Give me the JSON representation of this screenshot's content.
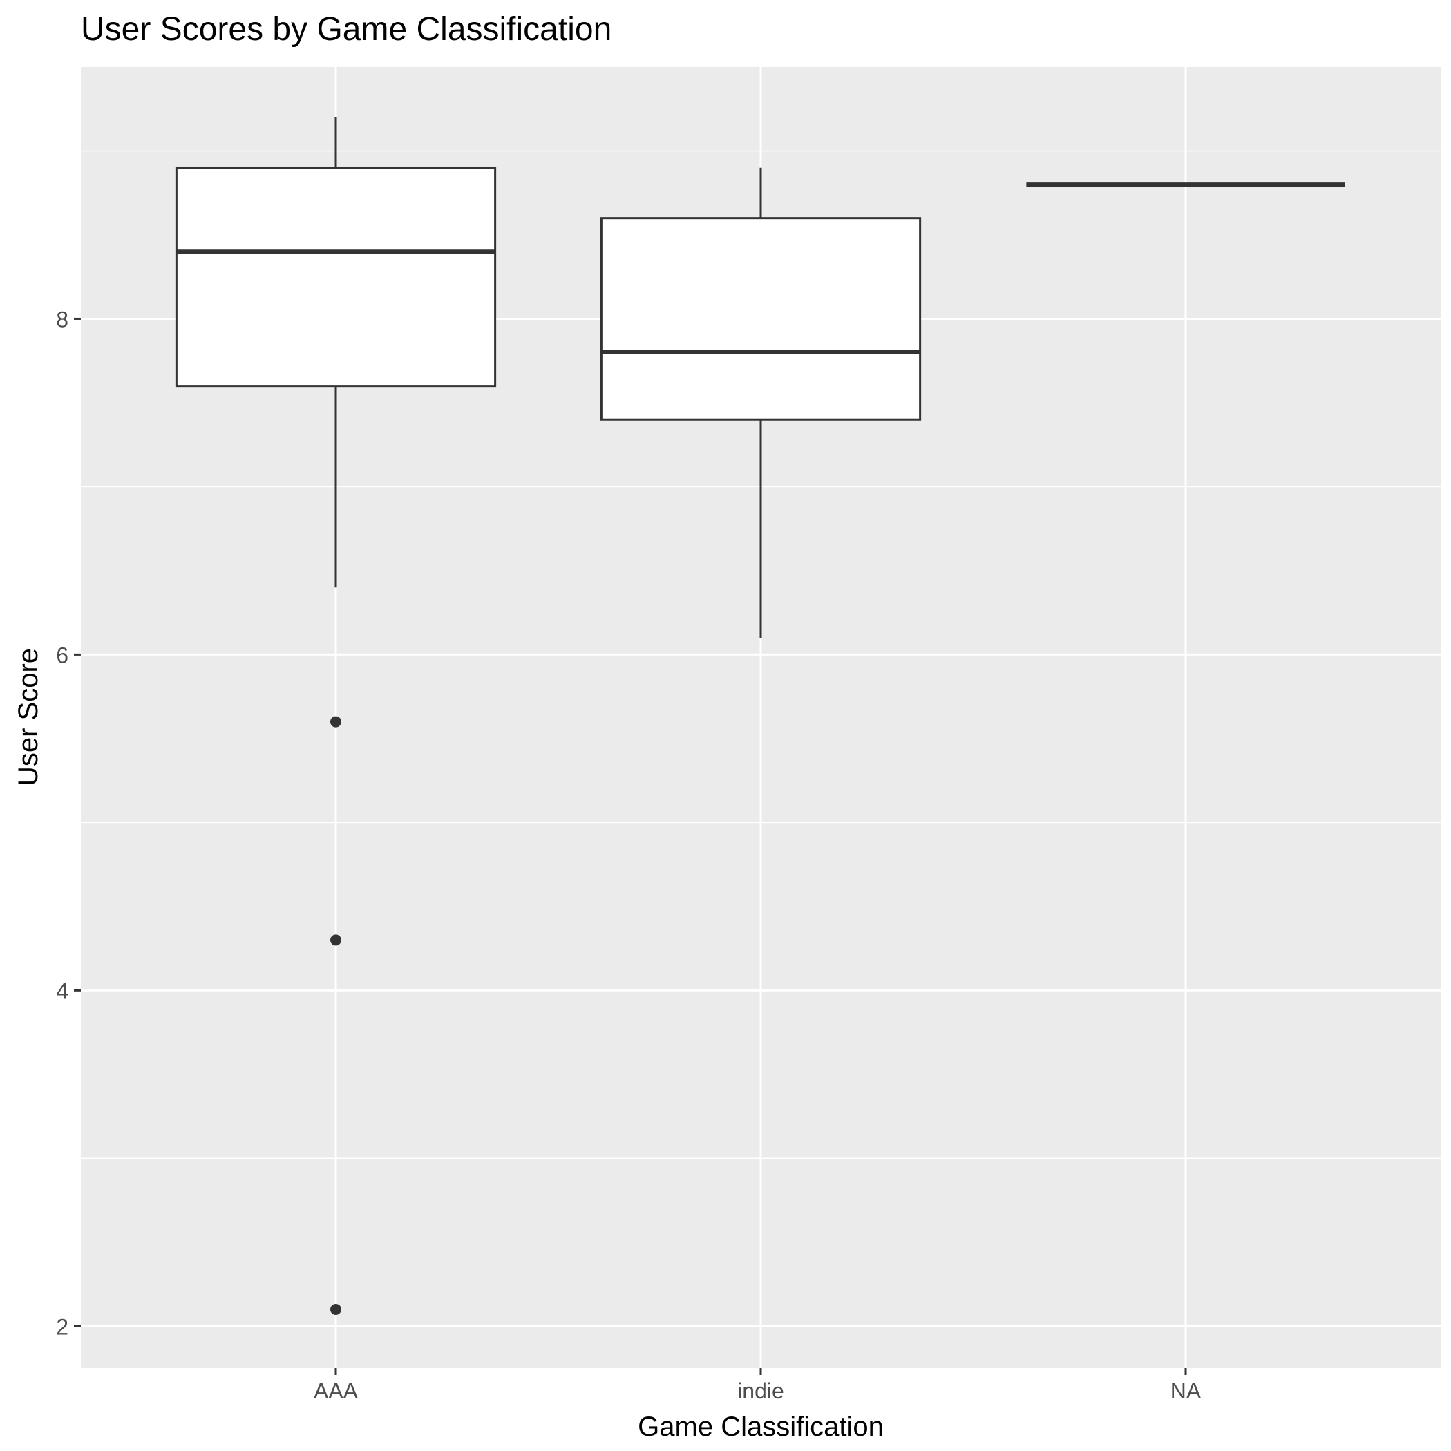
{
  "chart_data": {
    "type": "boxplot",
    "title": "User Scores by Game Classification",
    "xlabel": "Game Classification",
    "ylabel": "User Score",
    "categories": [
      "AAA",
      "indie",
      "NA"
    ],
    "ylim": [
      1.75,
      9.5
    ],
    "yticks": [
      2,
      4,
      6,
      8
    ],
    "grid": true,
    "boxes": [
      {
        "category": "AAA",
        "lower_whisker": 6.4,
        "q1": 7.6,
        "median": 8.4,
        "q3": 8.9,
        "upper_whisker": 9.2,
        "outliers": [
          5.6,
          4.3,
          2.1
        ]
      },
      {
        "category": "indie",
        "lower_whisker": 6.1,
        "q1": 7.4,
        "median": 7.8,
        "q3": 8.6,
        "upper_whisker": 8.9,
        "outliers": []
      },
      {
        "category": "NA",
        "lower_whisker": 8.8,
        "q1": 8.8,
        "median": 8.8,
        "q3": 8.8,
        "upper_whisker": 8.8,
        "outliers": []
      }
    ],
    "colors": {
      "panel_background": "#ebebeb",
      "grid": "#ffffff",
      "box_fill": "#ffffff",
      "box_line": "#333333",
      "tick_text": "#4d4d4d",
      "title_text": "#000000"
    }
  }
}
